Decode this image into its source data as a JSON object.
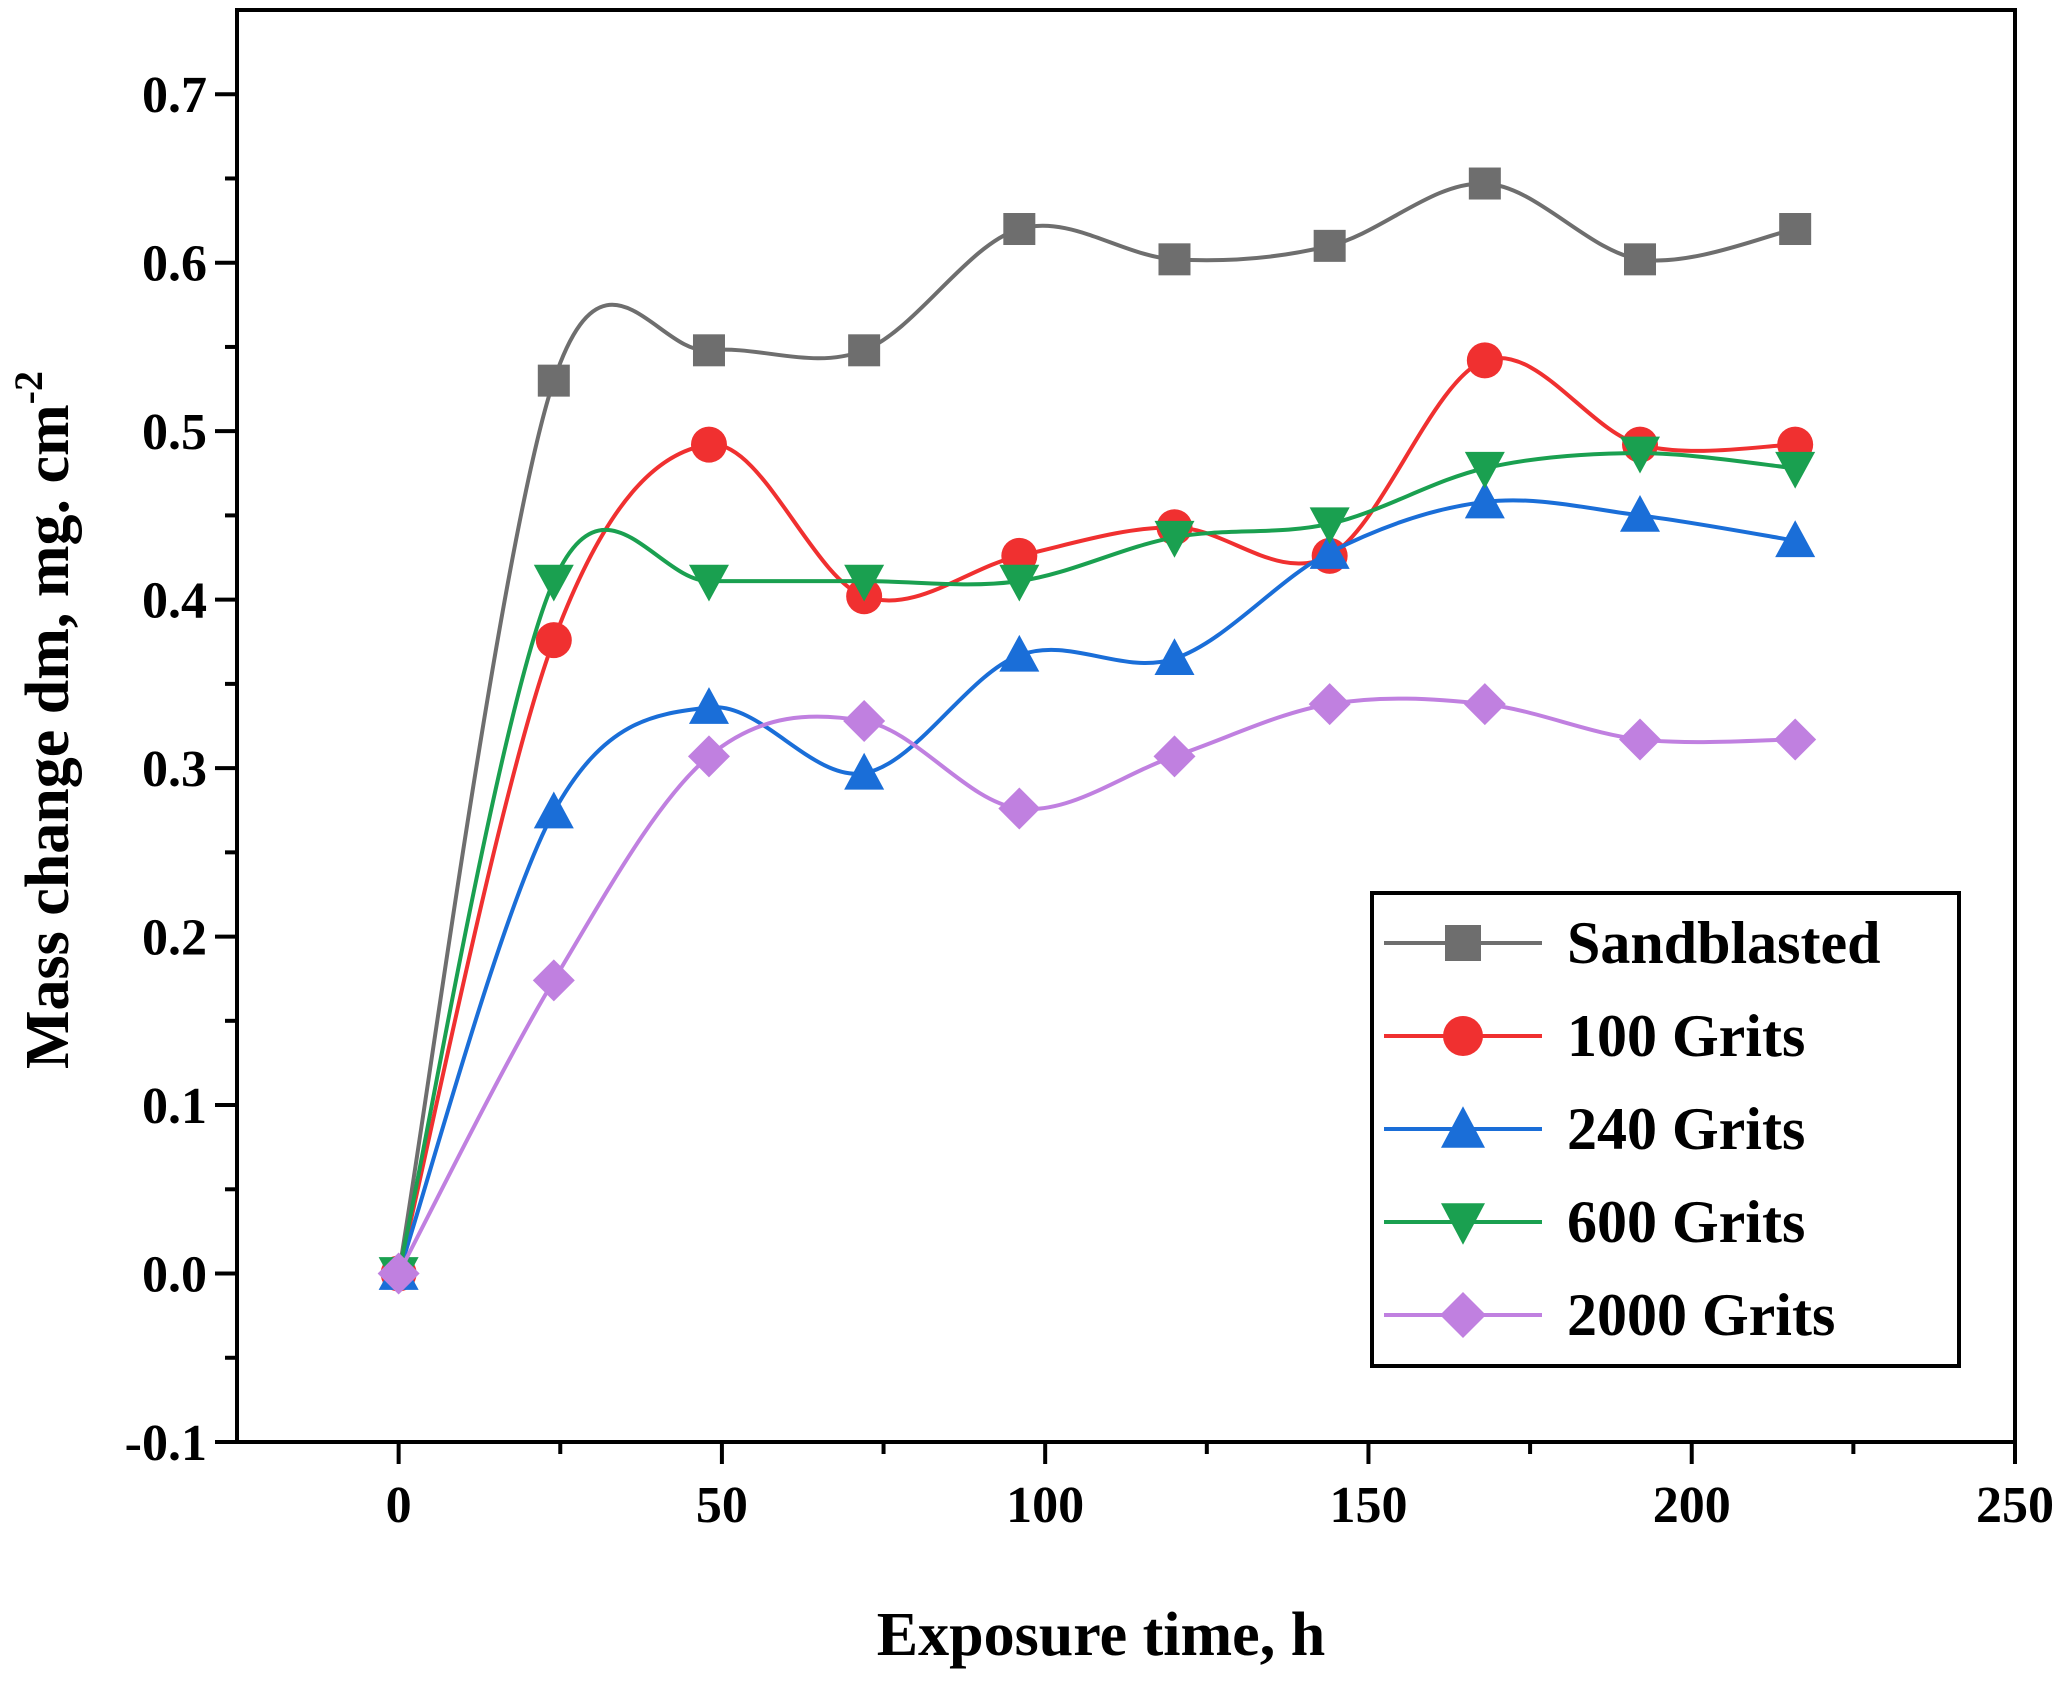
{
  "chart_data": {
    "type": "line",
    "smoothed": true,
    "xlabel": "Exposure time, h",
    "ylabel": {
      "main": "Mass change dm, mg. cm",
      "superscript": "-2"
    },
    "xlim": [
      -25,
      250
    ],
    "ylim": [
      -0.1,
      0.75
    ],
    "xticks": [
      0,
      50,
      100,
      150,
      200,
      250
    ],
    "xtick_labels": [
      "0",
      "50",
      "100",
      "150",
      "200",
      "250"
    ],
    "xminor": [
      25,
      75,
      125,
      175,
      225
    ],
    "yticks": [
      -0.1,
      0.0,
      0.1,
      0.2,
      0.3,
      0.4,
      0.5,
      0.6,
      0.7
    ],
    "ytick_labels": [
      "-0.1",
      "0.0",
      "0.1",
      "0.2",
      "0.3",
      "0.4",
      "0.5",
      "0.6",
      "0.7"
    ],
    "grid": false,
    "legend_position": "bottom-right",
    "x": [
      0,
      24,
      48,
      72,
      96,
      120,
      144,
      168,
      192,
      216
    ],
    "series": [
      {
        "name": "Sandblasted",
        "marker": "square",
        "color": "#6e6e6e",
        "values": [
          0.0,
          0.53,
          0.548,
          0.548,
          0.62,
          0.602,
          0.61,
          0.647,
          0.602,
          0.62
        ]
      },
      {
        "name": "100 Grits",
        "marker": "circle",
        "color": "#f03030",
        "values": [
          0.0,
          0.376,
          0.492,
          0.402,
          0.426,
          0.443,
          0.426,
          0.542,
          0.492,
          0.492
        ]
      },
      {
        "name": "240 Grits",
        "marker": "triangle-up",
        "color": "#1a6ed8",
        "values": [
          0.0,
          0.274,
          0.336,
          0.297,
          0.367,
          0.365,
          0.428,
          0.458,
          0.45,
          0.435
        ]
      },
      {
        "name": "600 Grits",
        "marker": "triangle-down",
        "color": "#1aa050",
        "values": [
          0.0,
          0.411,
          0.411,
          0.411,
          0.411,
          0.437,
          0.445,
          0.478,
          0.487,
          0.478
        ]
      },
      {
        "name": "2000 Grits",
        "marker": "diamond",
        "color": "#c080e0",
        "values": [
          0.0,
          0.174,
          0.307,
          0.328,
          0.276,
          0.307,
          0.338,
          0.338,
          0.317,
          0.317
        ]
      }
    ]
  }
}
